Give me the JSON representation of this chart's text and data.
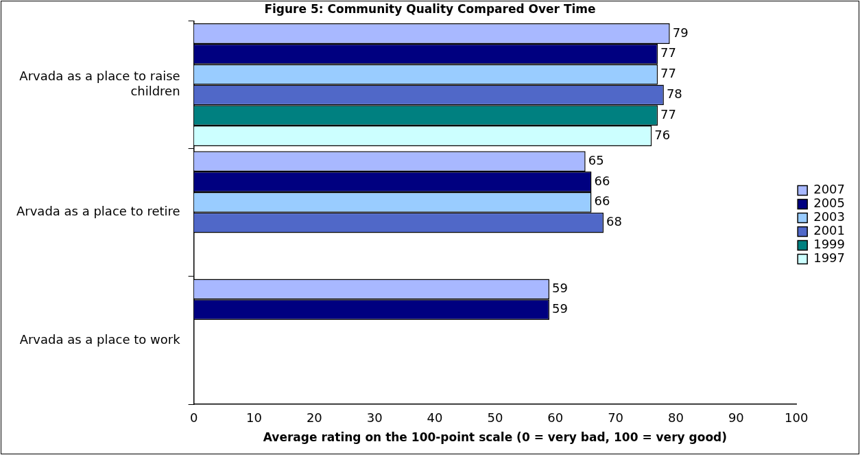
{
  "chart_data": {
    "type": "bar",
    "orientation": "horizontal",
    "title": "Figure 5: Community Quality Compared Over Time",
    "xlabel": "Average rating on the 100-point scale (0 = very bad, 100 = very good)",
    "categories": [
      "Arvada as a place to raise children",
      "Arvada as a place to retire",
      "Arvada as a place to work"
    ],
    "series": [
      {
        "name": "2007",
        "color": "#a8b8ff",
        "values": [
          79,
          65,
          59
        ]
      },
      {
        "name": "2005",
        "color": "#000080",
        "values": [
          77,
          66,
          59
        ]
      },
      {
        "name": "2003",
        "color": "#99ccff",
        "values": [
          77,
          66,
          null
        ]
      },
      {
        "name": "2001",
        "color": "#5068c8",
        "values": [
          78,
          68,
          null
        ]
      },
      {
        "name": "1999",
        "color": "#008080",
        "values": [
          77,
          null,
          null
        ]
      },
      {
        "name": "1997",
        "color": "#ccffff",
        "values": [
          76,
          null,
          null
        ]
      }
    ],
    "xlim": [
      0,
      100
    ],
    "xticks": [
      0,
      10,
      20,
      30,
      40,
      50,
      60,
      70,
      80,
      90,
      100
    ],
    "data_labels": true,
    "grid": false,
    "legend": "right"
  }
}
